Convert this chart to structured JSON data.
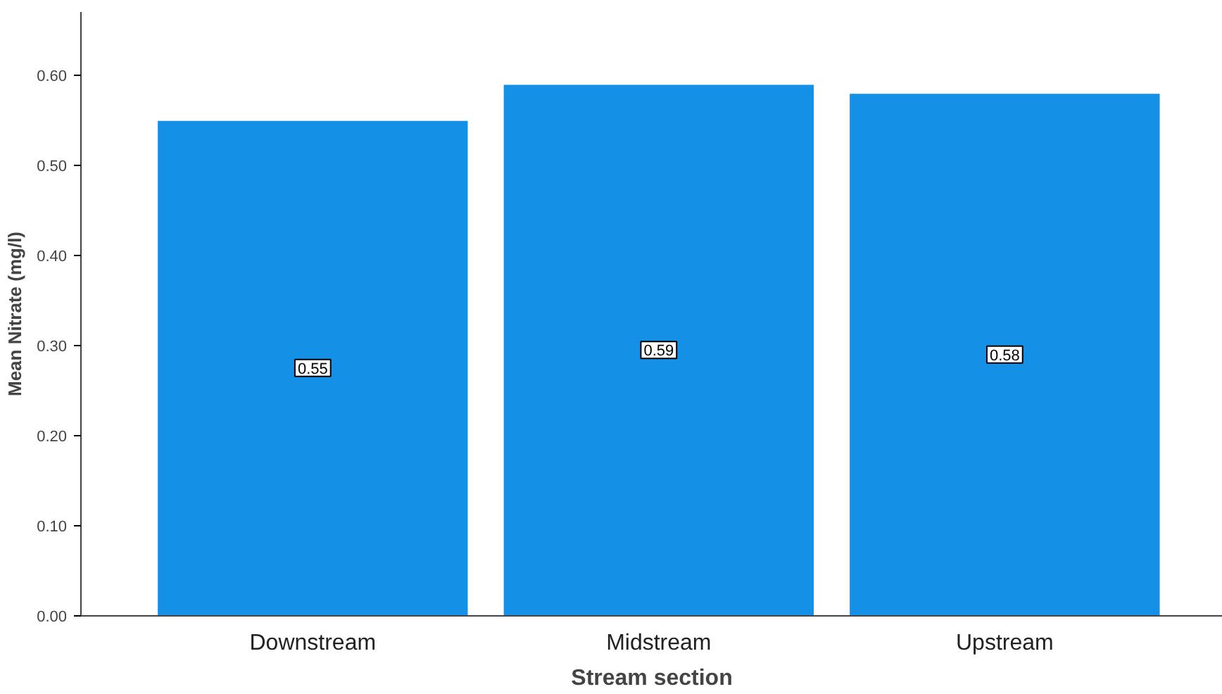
{
  "chart_data": {
    "type": "bar",
    "xlabel": "Stream section",
    "ylabel": "Mean Nitrate (mg/l)",
    "categories": [
      "Downstream",
      "Midstream",
      "Upstream"
    ],
    "values": [
      0.55,
      0.59,
      0.58
    ],
    "color": "#1490e6",
    "ylim": [
      0,
      0.67
    ],
    "yticks": [
      {
        "value": 0,
        "label": "0.00"
      },
      {
        "value": 0.1,
        "label": "0.10"
      },
      {
        "value": 0.2,
        "label": "0.20"
      },
      {
        "value": 0.3,
        "label": "0.30"
      },
      {
        "value": 0.4,
        "label": "0.40"
      },
      {
        "value": 0.5,
        "label": "0.50"
      },
      {
        "value": 0.6,
        "label": "0.60"
      }
    ],
    "data_labels": true,
    "grid": false
  }
}
